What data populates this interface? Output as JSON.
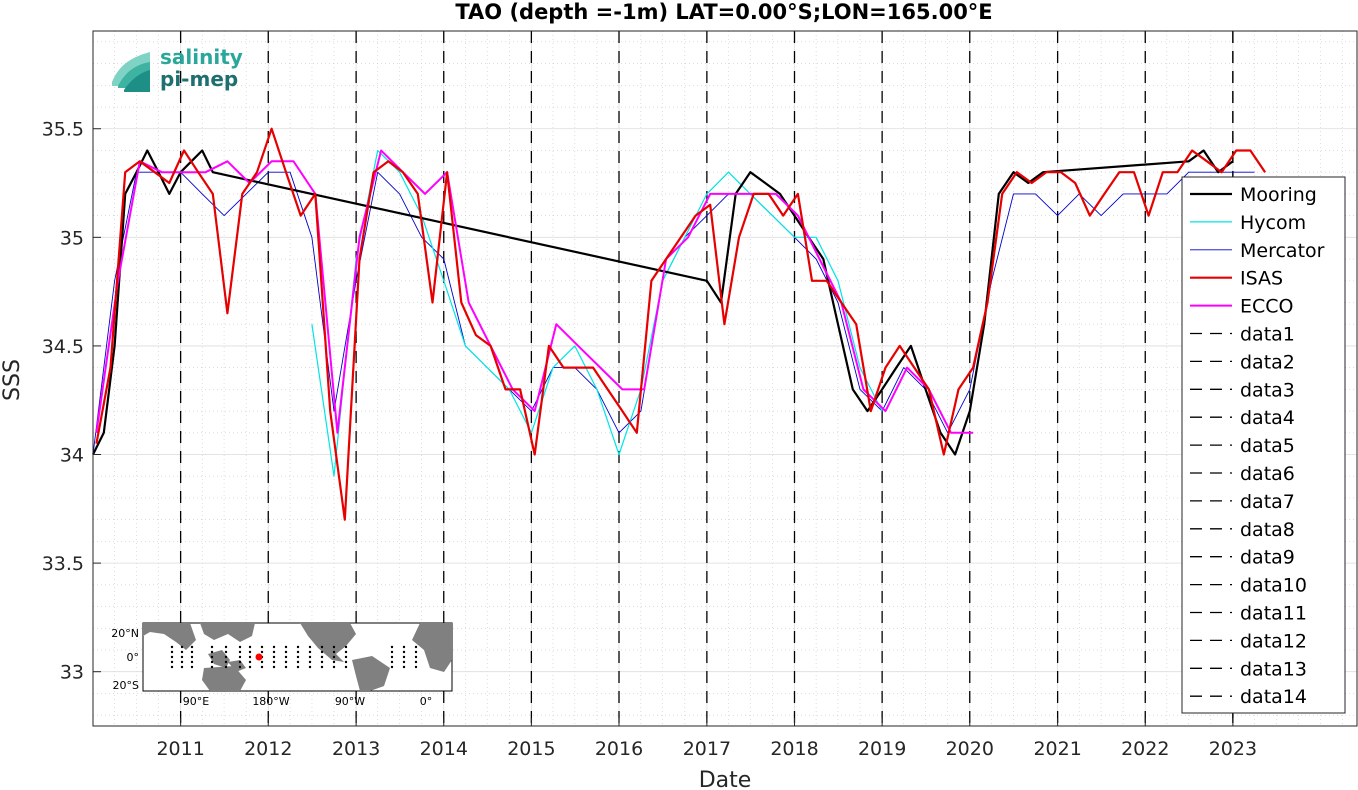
{
  "chart_data": {
    "type": "line",
    "title": "TAO (depth =-1m) LAT=0.00°S;LON=165.00°E",
    "xlabel": "Date",
    "ylabel": "SSS",
    "xlim": [
      "2010-01-01",
      "2024-06-01"
    ],
    "ylim": [
      32.75,
      35.95
    ],
    "yticks": [
      33,
      33.5,
      34,
      34.5,
      35,
      35.5
    ],
    "ytick_labels": [
      "33",
      "33.5",
      "34",
      "34.5",
      "35",
      "35.5"
    ],
    "xticks": [
      "2011-01-01",
      "2012-01-01",
      "2013-01-01",
      "2014-01-01",
      "2015-01-01",
      "2016-01-01",
      "2017-01-01",
      "2018-01-01",
      "2019-01-01",
      "2020-01-01",
      "2021-01-01",
      "2022-01-01",
      "2023-01-01"
    ],
    "xtick_labels": [
      "2011",
      "2012",
      "2013",
      "2014",
      "2015",
      "2016",
      "2017",
      "2018",
      "2019",
      "2020",
      "2021",
      "2022",
      "2023"
    ],
    "grid": true,
    "legend_position": "right",
    "colors": {
      "Mooring": "#000000",
      "Hycom": "#00e5e5",
      "Mercator": "#0000cc",
      "ISAS": "#e60000",
      "ECCO": "#ff00ff",
      "vlines": "#000000"
    },
    "series": [
      {
        "name": "Mooring",
        "x": [
          "2010-01-01",
          "2010-02-15",
          "2010-04-01",
          "2010-05-15",
          "2010-07-01",
          "2010-08-15",
          "2010-10-01",
          "2010-11-15",
          "2011-01-01",
          "2011-02-15",
          "2011-04-01",
          "2011-05-15",
          "2017-01-01",
          "2017-03-01",
          "2017-05-01",
          "2017-07-01",
          "2017-09-01",
          "2017-11-01",
          "2018-01-01",
          "2018-03-01",
          "2018-05-01",
          "2018-07-01",
          "2018-09-01",
          "2018-11-01",
          "2019-01-01",
          "2019-03-01",
          "2019-05-01",
          "2019-07-01",
          "2019-09-01",
          "2019-11-01",
          "2020-01-01",
          "2020-03-01",
          "2020-05-01",
          "2020-07-01",
          "2020-09-01",
          "2020-11-01",
          "2022-07-01",
          "2022-09-01",
          "2022-11-01",
          "2023-01-01"
        ],
        "y": [
          34.0,
          34.1,
          34.5,
          35.2,
          35.3,
          35.4,
          35.3,
          35.2,
          35.3,
          35.35,
          35.4,
          35.3,
          34.8,
          34.7,
          35.2,
          35.3,
          35.25,
          35.2,
          35.1,
          35.0,
          34.9,
          34.6,
          34.3,
          34.2,
          34.3,
          34.4,
          34.5,
          34.3,
          34.1,
          34.0,
          34.2,
          34.6,
          35.2,
          35.3,
          35.25,
          35.3,
          35.35,
          35.4,
          35.3,
          35.35
        ]
      },
      {
        "name": "Hycom",
        "x": [
          "2012-07-01",
          "2012-10-01",
          "2013-01-01",
          "2013-04-01",
          "2013-07-01",
          "2013-10-01",
          "2014-01-01",
          "2014-04-01",
          "2014-07-01",
          "2014-10-01",
          "2015-01-01",
          "2015-04-01",
          "2015-07-01",
          "2015-10-01",
          "2016-01-01",
          "2016-04-01",
          "2016-07-01",
          "2016-10-01",
          "2017-01-01",
          "2017-04-01",
          "2017-07-01",
          "2017-10-01",
          "2018-01-01",
          "2018-04-01",
          "2018-07-01",
          "2018-10-01",
          "2019-01-01"
        ],
        "y": [
          34.6,
          33.9,
          34.9,
          35.4,
          35.3,
          35.1,
          34.8,
          34.5,
          34.4,
          34.3,
          34.1,
          34.4,
          34.5,
          34.3,
          34.0,
          34.3,
          34.8,
          35.0,
          35.2,
          35.3,
          35.2,
          35.1,
          35.0,
          35.0,
          34.8,
          34.4,
          34.2
        ]
      },
      {
        "name": "Mercator",
        "x": [
          "2010-01-01",
          "2010-04-01",
          "2010-07-01",
          "2010-10-01",
          "2011-01-01",
          "2011-04-01",
          "2011-07-01",
          "2011-10-01",
          "2012-01-01",
          "2012-04-01",
          "2012-07-01",
          "2012-10-01",
          "2013-01-01",
          "2013-04-01",
          "2013-07-01",
          "2013-10-01",
          "2014-01-01",
          "2014-04-01",
          "2014-07-01",
          "2014-10-01",
          "2015-01-01",
          "2015-04-01",
          "2015-07-01",
          "2015-10-01",
          "2016-01-01",
          "2016-04-01",
          "2016-07-01",
          "2016-10-01",
          "2017-01-01",
          "2017-04-01",
          "2017-07-01",
          "2017-10-01",
          "2018-01-01",
          "2018-04-01",
          "2018-07-01",
          "2018-10-01",
          "2019-01-01",
          "2019-04-01",
          "2019-07-01",
          "2019-10-01",
          "2020-01-01",
          "2020-04-01",
          "2020-07-01",
          "2020-10-01",
          "2021-01-01",
          "2021-04-01",
          "2021-07-01",
          "2021-10-01",
          "2022-01-01",
          "2022-04-01",
          "2022-07-01",
          "2022-10-01",
          "2023-01-01",
          "2023-04-01"
        ],
        "y": [
          34.0,
          34.8,
          35.3,
          35.3,
          35.3,
          35.2,
          35.1,
          35.2,
          35.3,
          35.3,
          35.0,
          34.2,
          34.8,
          35.3,
          35.2,
          35.0,
          34.9,
          34.5,
          34.4,
          34.3,
          34.2,
          34.4,
          34.4,
          34.3,
          34.1,
          34.2,
          34.8,
          35.0,
          35.1,
          35.2,
          35.2,
          35.1,
          35.0,
          34.9,
          34.7,
          34.3,
          34.2,
          34.4,
          34.3,
          34.1,
          34.3,
          34.8,
          35.2,
          35.2,
          35.1,
          35.2,
          35.1,
          35.2,
          35.2,
          35.2,
          35.3,
          35.3,
          35.3,
          35.3
        ]
      },
      {
        "name": "ISAS",
        "x": [
          "2010-01-15",
          "2010-03-15",
          "2010-05-15",
          "2010-07-15",
          "2010-09-15",
          "2010-11-15",
          "2011-01-15",
          "2011-03-15",
          "2011-05-15",
          "2011-07-15",
          "2011-09-15",
          "2011-11-15",
          "2012-01-15",
          "2012-03-15",
          "2012-05-15",
          "2012-07-15",
          "2012-09-15",
          "2012-11-15",
          "2013-01-15",
          "2013-03-15",
          "2013-05-15",
          "2013-07-15",
          "2013-09-15",
          "2013-11-15",
          "2014-01-15",
          "2014-03-15",
          "2014-05-15",
          "2014-07-15",
          "2014-09-15",
          "2014-11-15",
          "2015-01-15",
          "2015-03-15",
          "2015-05-15",
          "2015-07-15",
          "2015-09-15",
          "2015-11-15",
          "2016-01-15",
          "2016-03-15",
          "2016-05-15",
          "2016-07-15",
          "2016-09-15",
          "2016-11-15",
          "2017-01-15",
          "2017-03-15",
          "2017-05-15",
          "2017-07-15",
          "2017-09-15",
          "2017-11-15",
          "2018-01-15",
          "2018-03-15",
          "2018-05-15",
          "2018-07-15",
          "2018-09-15",
          "2018-11-15",
          "2019-01-15",
          "2019-03-15",
          "2019-05-15",
          "2019-07-15",
          "2019-09-15",
          "2019-11-15",
          "2020-01-15",
          "2020-03-15",
          "2020-05-15",
          "2020-07-15",
          "2020-09-15",
          "2020-11-15",
          "2021-01-15",
          "2021-03-15",
          "2021-05-15",
          "2021-07-15",
          "2021-09-15",
          "2021-11-15",
          "2022-01-15",
          "2022-03-15",
          "2022-05-15",
          "2022-07-15",
          "2022-09-15",
          "2022-11-15",
          "2023-01-15",
          "2023-03-15",
          "2023-05-15"
        ],
        "y": [
          34.05,
          34.4,
          35.3,
          35.35,
          35.3,
          35.25,
          35.4,
          35.3,
          35.2,
          34.65,
          35.2,
          35.3,
          35.5,
          35.3,
          35.1,
          35.2,
          34.2,
          33.7,
          34.9,
          35.3,
          35.35,
          35.3,
          35.2,
          34.7,
          35.3,
          34.7,
          34.55,
          34.5,
          34.3,
          34.3,
          34.0,
          34.5,
          34.4,
          34.4,
          34.4,
          34.3,
          34.2,
          34.1,
          34.8,
          34.9,
          35.0,
          35.1,
          35.15,
          34.6,
          35.0,
          35.2,
          35.2,
          35.1,
          35.2,
          34.8,
          34.8,
          34.7,
          34.6,
          34.2,
          34.4,
          34.5,
          34.4,
          34.3,
          34.0,
          34.3,
          34.4,
          34.7,
          35.2,
          35.3,
          35.25,
          35.3,
          35.3,
          35.25,
          35.1,
          35.2,
          35.3,
          35.3,
          35.1,
          35.3,
          35.3,
          35.4,
          35.35,
          35.3,
          35.4,
          35.4,
          35.3
        ]
      },
      {
        "name": "ECCO",
        "x": [
          "2010-01-15",
          "2010-04-15",
          "2010-07-15",
          "2010-10-15",
          "2011-01-15",
          "2011-04-15",
          "2011-07-15",
          "2011-10-15",
          "2012-01-15",
          "2012-04-15",
          "2012-07-15",
          "2012-10-15",
          "2013-01-15",
          "2013-04-15",
          "2013-07-15",
          "2013-10-15",
          "2014-01-15",
          "2014-04-15",
          "2014-07-15",
          "2014-10-15",
          "2015-01-15",
          "2015-04-15",
          "2015-07-15",
          "2015-10-15",
          "2016-01-15",
          "2016-04-15",
          "2016-07-15",
          "2016-10-15",
          "2017-01-15",
          "2017-04-15",
          "2017-07-15",
          "2017-10-15",
          "2018-01-15",
          "2018-04-15",
          "2018-07-15",
          "2018-10-15",
          "2019-01-15",
          "2019-04-15",
          "2019-07-15",
          "2019-10-15",
          "2020-01-15"
        ],
        "y": [
          34.1,
          34.8,
          35.35,
          35.3,
          35.3,
          35.3,
          35.35,
          35.25,
          35.35,
          35.35,
          35.2,
          34.1,
          35.0,
          35.4,
          35.3,
          35.2,
          35.3,
          34.7,
          34.5,
          34.3,
          34.2,
          34.6,
          34.5,
          34.4,
          34.3,
          34.3,
          34.9,
          35.0,
          35.2,
          35.2,
          35.2,
          35.2,
          35.1,
          34.9,
          34.7,
          34.3,
          34.2,
          34.4,
          34.3,
          34.1,
          34.1
        ]
      }
    ],
    "vlines": [
      {
        "name": "data1",
        "x": "2011-01-01"
      },
      {
        "name": "data2",
        "x": "2012-01-01"
      },
      {
        "name": "data3",
        "x": "2013-01-01"
      },
      {
        "name": "data4",
        "x": "2014-01-01"
      },
      {
        "name": "data5",
        "x": "2015-01-01"
      },
      {
        "name": "data6",
        "x": "2016-01-01"
      },
      {
        "name": "data7",
        "x": "2017-01-01"
      },
      {
        "name": "data8",
        "x": "2018-01-01"
      },
      {
        "name": "data9",
        "x": "2019-01-01"
      },
      {
        "name": "data10",
        "x": "2020-01-01"
      },
      {
        "name": "data11",
        "x": "2021-01-01"
      },
      {
        "name": "data12",
        "x": "2022-01-01"
      },
      {
        "name": "data13",
        "x": "2023-01-01"
      },
      {
        "name": "data14",
        "x": "2023-01-01"
      }
    ]
  },
  "logo": {
    "line1": "salinity",
    "line2": "pi-mep"
  },
  "inset_map": {
    "lat_labels": [
      "20°N",
      "0°",
      "20°S"
    ],
    "lon_labels": [
      "90°E",
      "180°W",
      "90°W",
      "0°"
    ],
    "marker_color": "#ff0000"
  }
}
